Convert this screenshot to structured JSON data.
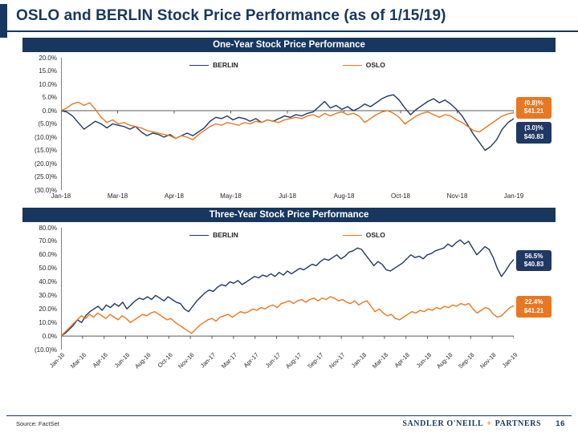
{
  "page": {
    "title": "OSLO and BERLIN Stock Price Performance (as of 1/15/19)",
    "source": "Source: FactSet",
    "brand": {
      "name1": "SANDLER O'NEILL",
      "plus": "+",
      "name2": "PARTNERS",
      "page_number": "16"
    }
  },
  "colors": {
    "navy": "#1F3864",
    "orange": "#E87722",
    "axis": "#595959",
    "yaxis": "#808080"
  },
  "chart_data": [
    {
      "type": "line",
      "title": "One-Year Stock Price Performance",
      "ylim": [
        -30,
        20
      ],
      "grid": false,
      "legend_position": "top-center",
      "yticks": [
        {
          "v": 20,
          "label": "20.0%"
        },
        {
          "v": 15,
          "label": "15.0%"
        },
        {
          "v": 10,
          "label": "10.0%"
        },
        {
          "v": 5,
          "label": "5.0%"
        },
        {
          "v": 0,
          "label": "0.0%"
        },
        {
          "v": -5,
          "label": "(5.0)%"
        },
        {
          "v": -10,
          "label": "(10.0)%"
        },
        {
          "v": -15,
          "label": "(15.0)%"
        },
        {
          "v": -20,
          "label": "(20.0)%"
        },
        {
          "v": -25,
          "label": "(25.0)%"
        },
        {
          "v": -30,
          "label": "(30.0)%"
        }
      ],
      "xticks": [
        "Jan-18",
        "Mar-18",
        "Apr-18",
        "May-18",
        "Jul-18",
        "Aug-18",
        "Oct-18",
        "Nov-18",
        "Jan-19"
      ],
      "rotate_xticks": false,
      "series": [
        {
          "name": "BERLIN",
          "color": "navy",
          "values": [
            0,
            -0.5,
            -2,
            -4.5,
            -7,
            -5.5,
            -4,
            -5,
            -6.5,
            -5,
            -5.5,
            -6,
            -7,
            -6,
            -8,
            -9.5,
            -8.5,
            -9,
            -10,
            -9,
            -10.5,
            -9.5,
            -8.5,
            -9.5,
            -8,
            -6.5,
            -4,
            -2.5,
            -3,
            -2,
            -3.5,
            -2.5,
            -3,
            -4,
            -3,
            -4.5,
            -3.5,
            -4,
            -3,
            -2,
            -2.5,
            -1.5,
            -2,
            -1,
            -0.5,
            1.5,
            3.5,
            1,
            2,
            0.5,
            1.5,
            0,
            1,
            2.5,
            1.5,
            3,
            4.5,
            5.5,
            6,
            4,
            1,
            -1.5,
            0.5,
            2,
            3.5,
            4.5,
            3,
            4,
            2.5,
            0.5,
            -2,
            -5.5,
            -9,
            -12,
            -15,
            -13.5,
            -11,
            -7,
            -4.5,
            -3
          ]
        },
        {
          "name": "OSLO",
          "color": "orange",
          "values": [
            0,
            1,
            2.5,
            3.2,
            2,
            3,
            0.5,
            -2.5,
            -4.5,
            -3.5,
            -5,
            -4.5,
            -5.5,
            -6,
            -6.5,
            -7.5,
            -8,
            -8.5,
            -9,
            -9.5,
            -10.5,
            -9.5,
            -10,
            -11,
            -9,
            -7.5,
            -6,
            -5,
            -5.5,
            -4.5,
            -5,
            -5.5,
            -4.5,
            -5,
            -4,
            -4.5,
            -3.5,
            -4,
            -4.5,
            -3.5,
            -3,
            -2.5,
            -3,
            -2,
            -1.5,
            -2.5,
            -1,
            -2,
            -1,
            -0.5,
            -1.5,
            -1,
            -2,
            -4.5,
            -3,
            -1.5,
            -0.5,
            0,
            -1,
            -2.5,
            -5,
            -3.5,
            -2,
            -1,
            -0.5,
            -1.5,
            -2.5,
            -1.5,
            -2,
            -3.5,
            -4.5,
            -6,
            -7.5,
            -8,
            -6.5,
            -5,
            -3.5,
            -2,
            -1.2,
            -0.8
          ]
        }
      ],
      "end_labels": [
        {
          "lines": [
            "(0.8)%",
            "$41.21"
          ],
          "color": "orange",
          "at": 1.5
        },
        {
          "lines": [
            "(3.0)%",
            "$40.83"
          ],
          "color": "navy",
          "at": -8
        }
      ]
    },
    {
      "type": "line",
      "title": "Three-Year Stock Price Performance",
      "ylim": [
        -10,
        80
      ],
      "grid": false,
      "legend_position": "top-center",
      "yticks": [
        {
          "v": 80,
          "label": "80.0%"
        },
        {
          "v": 70,
          "label": "70.0%"
        },
        {
          "v": 60,
          "label": "60.0%"
        },
        {
          "v": 50,
          "label": "50.0%"
        },
        {
          "v": 40,
          "label": "40.0%"
        },
        {
          "v": 30,
          "label": "30.0%"
        },
        {
          "v": 20,
          "label": "20.0%"
        },
        {
          "v": 10,
          "label": "10.0%"
        },
        {
          "v": 0,
          "label": "0.0%"
        },
        {
          "v": -10,
          "label": "(10.0)%"
        }
      ],
      "xticks": [
        "Jan-16",
        "Mar-16",
        "Apr-16",
        "Jun-16",
        "Aug-16",
        "Oct-16",
        "Nov-16",
        "Jan-17",
        "Mar-17",
        "Apr-17",
        "Jun-17",
        "Aug-17",
        "Sep-17",
        "Nov-17",
        "Jan-18",
        "Mar-18",
        "Apr-18",
        "Jun-18",
        "Aug-18",
        "Sep-18",
        "Nov-18",
        "Jan-19"
      ],
      "rotate_xticks": true,
      "series": [
        {
          "name": "BERLIN",
          "color": "navy",
          "values": [
            0,
            2,
            5,
            8,
            12,
            10,
            15,
            18,
            20,
            22,
            19,
            23,
            21,
            24,
            22,
            25,
            20,
            23,
            26,
            28,
            27,
            29,
            27,
            30,
            28,
            26,
            29,
            27,
            25,
            24,
            20,
            18,
            22,
            26,
            29,
            32,
            34,
            33,
            36,
            38,
            37,
            40,
            39,
            41,
            38,
            40,
            42,
            44,
            43,
            45,
            44,
            46,
            44,
            47,
            45,
            48,
            46,
            48,
            50,
            49,
            51,
            53,
            52,
            55,
            57,
            56,
            58,
            60,
            57,
            59,
            62,
            63,
            65,
            64,
            60,
            56,
            52,
            55,
            53,
            49,
            48,
            50,
            52,
            54,
            57,
            60,
            58,
            59,
            57,
            60,
            61,
            63,
            64,
            65,
            68,
            66,
            69,
            71,
            68,
            70,
            65,
            60,
            63,
            66,
            64,
            58,
            50,
            44,
            48,
            53,
            56.5
          ]
        },
        {
          "name": "OSLO",
          "color": "orange",
          "values": [
            0,
            3,
            6,
            9,
            12,
            15,
            13,
            16,
            14,
            17,
            15,
            13,
            16,
            14,
            12,
            15,
            13,
            10,
            12,
            14,
            16,
            15,
            17,
            18,
            16,
            14,
            12,
            13,
            10,
            8,
            6,
            4,
            2,
            5,
            8,
            10,
            12,
            13,
            11,
            14,
            15,
            16,
            14,
            16,
            18,
            17,
            18,
            20,
            19,
            21,
            20,
            22,
            23,
            21,
            24,
            25,
            26,
            24,
            26,
            27,
            25,
            27,
            28,
            26,
            28,
            27,
            29,
            28,
            26,
            27,
            25,
            24,
            26,
            23,
            25,
            26,
            22,
            18,
            20,
            17,
            15,
            16,
            13,
            12,
            14,
            16,
            18,
            17,
            19,
            18,
            20,
            19,
            21,
            20,
            22,
            21,
            23,
            22,
            24,
            23,
            24,
            20,
            17,
            19,
            21,
            20,
            16,
            14,
            15,
            18,
            21,
            22.4
          ]
        }
      ],
      "end_labels": [
        {
          "lines": [
            "56.5%",
            "$40.83"
          ],
          "color": "navy",
          "at": 56.5
        },
        {
          "lines": [
            "22.4%",
            "$41.21"
          ],
          "color": "orange",
          "at": 22.4
        }
      ]
    }
  ]
}
